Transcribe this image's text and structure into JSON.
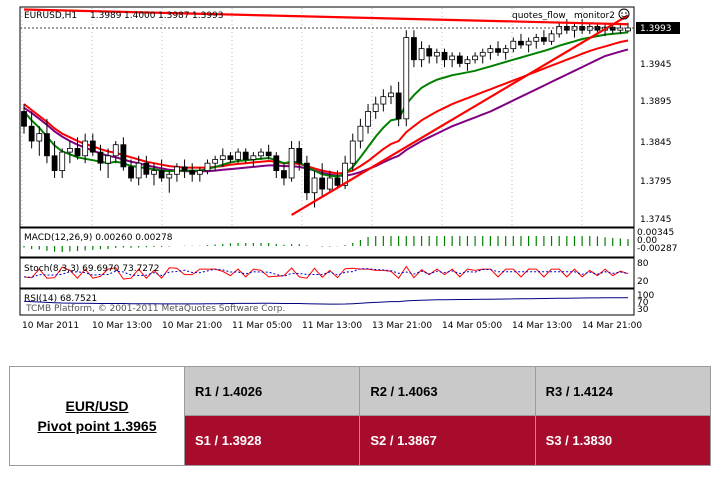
{
  "chart_data": {
    "type": "candlestick",
    "symbol_header": "EURUSD,H1",
    "ohlc_header": [
      "1.3989",
      "1.4000",
      "1.3987",
      "1.3993"
    ],
    "indicators_header": [
      "quotes_flow",
      "monitor2"
    ],
    "current_price": "1.3993",
    "y_ticks": [
      "1.3945",
      "1.3895",
      "1.3845",
      "1.3795",
      "1.3745"
    ],
    "ylim": [
      1.3725,
      1.402
    ],
    "x_ticks": [
      "10 Mar 2011",
      "10 Mar 13:00",
      "10 Mar 21:00",
      "11 Mar 05:00",
      "11 Mar 13:00",
      "13 Mar 21:00",
      "14 Mar 05:00",
      "14 Mar 13:00",
      "14 Mar 21:00"
    ],
    "candles": [
      [
        1.388,
        1.389,
        1.385,
        1.386
      ],
      [
        1.386,
        1.388,
        1.383,
        1.384
      ],
      [
        1.384,
        1.386,
        1.382,
        1.385
      ],
      [
        1.385,
        1.387,
        1.381,
        1.382
      ],
      [
        1.382,
        1.384,
        1.379,
        1.38
      ],
      [
        1.38,
        1.383,
        1.379,
        1.3825
      ],
      [
        1.3825,
        1.384,
        1.381,
        1.383
      ],
      [
        1.383,
        1.3845,
        1.3815,
        1.382
      ],
      [
        1.382,
        1.385,
        1.381,
        1.384
      ],
      [
        1.384,
        1.385,
        1.382,
        1.3825
      ],
      [
        1.3825,
        1.3835,
        1.38,
        1.381
      ],
      [
        1.381,
        1.383,
        1.379,
        1.382
      ],
      [
        1.382,
        1.384,
        1.381,
        1.3835
      ],
      [
        1.3835,
        1.3845,
        1.38,
        1.3805
      ],
      [
        1.3805,
        1.3815,
        1.3785,
        1.379
      ],
      [
        1.379,
        1.382,
        1.378,
        1.381
      ],
      [
        1.381,
        1.382,
        1.379,
        1.3795
      ],
      [
        1.3795,
        1.381,
        1.378,
        1.38
      ],
      [
        1.38,
        1.3815,
        1.3785,
        1.379
      ],
      [
        1.379,
        1.38,
        1.377,
        1.3795
      ],
      [
        1.3795,
        1.381,
        1.3785,
        1.3805
      ],
      [
        1.3805,
        1.3815,
        1.379,
        1.38
      ],
      [
        1.38,
        1.381,
        1.3785,
        1.3795
      ],
      [
        1.3795,
        1.3805,
        1.3785,
        1.38
      ],
      [
        1.38,
        1.3815,
        1.3795,
        1.381
      ],
      [
        1.381,
        1.382,
        1.38,
        1.3815
      ],
      [
        1.3815,
        1.383,
        1.3805,
        1.382
      ],
      [
        1.382,
        1.3825,
        1.381,
        1.3815
      ],
      [
        1.3815,
        1.383,
        1.381,
        1.3825
      ],
      [
        1.3825,
        1.383,
        1.381,
        1.3815
      ],
      [
        1.3815,
        1.3825,
        1.3805,
        1.382
      ],
      [
        1.382,
        1.383,
        1.3815,
        1.3825
      ],
      [
        1.3825,
        1.3835,
        1.3815,
        1.382
      ],
      [
        1.382,
        1.3825,
        1.379,
        1.38
      ],
      [
        1.38,
        1.381,
        1.378,
        1.379
      ],
      [
        1.379,
        1.384,
        1.3785,
        1.383
      ],
      [
        1.383,
        1.384,
        1.38,
        1.381
      ],
      [
        1.381,
        1.382,
        1.376,
        1.377
      ],
      [
        1.377,
        1.38,
        1.375,
        1.379
      ],
      [
        1.379,
        1.381,
        1.3765,
        1.3775
      ],
      [
        1.3775,
        1.38,
        1.377,
        1.379
      ],
      [
        1.379,
        1.38,
        1.3775,
        1.378
      ],
      [
        1.378,
        1.382,
        1.3775,
        1.381
      ],
      [
        1.381,
        1.385,
        1.38,
        1.384
      ],
      [
        1.384,
        1.387,
        1.383,
        1.386
      ],
      [
        1.386,
        1.389,
        1.385,
        1.388
      ],
      [
        1.388,
        1.39,
        1.387,
        1.389
      ],
      [
        1.389,
        1.391,
        1.388,
        1.39
      ],
      [
        1.39,
        1.3915,
        1.389,
        1.3905
      ],
      [
        1.3905,
        1.392,
        1.386,
        1.387
      ],
      [
        1.387,
        1.399,
        1.386,
        1.398
      ],
      [
        1.398,
        1.399,
        1.394,
        1.395
      ],
      [
        1.395,
        1.3975,
        1.394,
        1.3965
      ],
      [
        1.3965,
        1.397,
        1.3945,
        1.3955
      ],
      [
        1.3955,
        1.3965,
        1.3945,
        1.396
      ],
      [
        1.396,
        1.3965,
        1.394,
        1.395
      ],
      [
        1.395,
        1.396,
        1.394,
        1.3955
      ],
      [
        1.3955,
        1.396,
        1.394,
        1.3945
      ],
      [
        1.3945,
        1.3955,
        1.3935,
        1.395
      ],
      [
        1.395,
        1.396,
        1.3945,
        1.3955
      ],
      [
        1.3955,
        1.3965,
        1.3945,
        1.396
      ],
      [
        1.396,
        1.397,
        1.395,
        1.3965
      ],
      [
        1.3965,
        1.3975,
        1.3955,
        1.396
      ],
      [
        1.396,
        1.397,
        1.395,
        1.3965
      ],
      [
        1.3965,
        1.398,
        1.396,
        1.3975
      ],
      [
        1.3975,
        1.3985,
        1.3965,
        1.397
      ],
      [
        1.397,
        1.398,
        1.396,
        1.3975
      ],
      [
        1.3975,
        1.3985,
        1.3965,
        1.398
      ],
      [
        1.398,
        1.399,
        1.397,
        1.3975
      ],
      [
        1.3975,
        1.399,
        1.397,
        1.3985
      ],
      [
        1.3985,
        1.4,
        1.398,
        1.3995
      ],
      [
        1.3995,
        1.4005,
        1.3985,
        1.399
      ],
      [
        1.399,
        1.4,
        1.398,
        1.3995
      ],
      [
        1.3995,
        1.4005,
        1.3985,
        1.399
      ],
      [
        1.399,
        1.4,
        1.3985,
        1.3995
      ],
      [
        1.3995,
        1.4,
        1.3985,
        1.399
      ],
      [
        1.399,
        1.3998,
        1.3982,
        1.3994
      ],
      [
        1.3994,
        1.4,
        1.3985,
        1.399
      ],
      [
        1.399,
        1.3998,
        1.3985,
        1.3993
      ],
      [
        1.3989,
        1.4,
        1.3987,
        1.3993
      ]
    ],
    "series": [
      {
        "values": [
          1.388,
          1.3868,
          1.3858,
          1.3846,
          1.3834,
          1.3826,
          1.3822,
          1.3818,
          1.3816,
          1.3814,
          1.3812,
          1.381,
          1.3812,
          1.381,
          1.3806,
          1.3805,
          1.3803,
          1.3802,
          1.38,
          1.3799,
          1.38,
          1.38,
          1.38,
          1.38,
          1.3802,
          1.3805,
          1.3808,
          1.3811,
          1.3813,
          1.3814,
          1.3815,
          1.3816,
          1.3817,
          1.3814,
          1.381,
          1.3812,
          1.3811,
          1.3805,
          1.38,
          1.3795,
          1.3793,
          1.3792,
          1.3796,
          1.3805,
          1.3818,
          1.3832,
          1.3846,
          1.3858,
          1.3868,
          1.387,
          1.389,
          1.3902,
          1.3912,
          1.3918,
          1.3923,
          1.3926,
          1.3929,
          1.3931,
          1.3933,
          1.3935,
          1.3938,
          1.3941,
          1.3944,
          1.3947,
          1.395,
          1.3953,
          1.3956,
          1.3959,
          1.3962,
          1.3965,
          1.3969,
          1.3972,
          1.3975,
          1.3978,
          1.398,
          1.3982,
          1.3984,
          1.3985,
          1.3986,
          1.3987
        ]
      },
      {
        "values": [
          1.389,
          1.3882,
          1.3874,
          1.3866,
          1.3857,
          1.385,
          1.3845,
          1.384,
          1.3836,
          1.3833,
          1.3829,
          1.3826,
          1.3824,
          1.3821,
          1.3818,
          1.3815,
          1.3812,
          1.381,
          1.3808,
          1.3806,
          1.3805,
          1.3804,
          1.3804,
          1.3804,
          1.3804,
          1.3805,
          1.3806,
          1.3808,
          1.3809,
          1.381,
          1.3811,
          1.3812,
          1.3813,
          1.3812,
          1.381,
          1.381,
          1.3809,
          1.3806,
          1.3803,
          1.38,
          1.3798,
          1.3796,
          1.3797,
          1.38,
          1.3806,
          1.3813,
          1.3821,
          1.3829,
          1.3836,
          1.384,
          1.3852,
          1.386,
          1.3868,
          1.3874,
          1.388,
          1.3885,
          1.389,
          1.3894,
          1.3898,
          1.3902,
          1.3906,
          1.391,
          1.3914,
          1.3918,
          1.3922,
          1.3926,
          1.393,
          1.3934,
          1.3938,
          1.3942,
          1.3946,
          1.395,
          1.3954,
          1.3958,
          1.3962,
          1.3965,
          1.3968,
          1.3971,
          1.3974,
          1.3976
        ]
      },
      {
        "values": [
          1.3885,
          1.3878,
          1.387,
          1.3862,
          1.3853,
          1.3846,
          1.384,
          1.3835,
          1.3831,
          1.3827,
          1.3823,
          1.382,
          1.3818,
          1.3815,
          1.3812,
          1.381,
          1.3807,
          1.3805,
          1.3803,
          1.3801,
          1.38,
          1.3799,
          1.3799,
          1.3799,
          1.3799,
          1.38,
          1.3801,
          1.3802,
          1.3803,
          1.3804,
          1.3805,
          1.3806,
          1.3807,
          1.3807,
          1.3806,
          1.3806,
          1.3805,
          1.3803,
          1.38,
          1.3797,
          1.3795,
          1.3793,
          1.3793,
          1.3795,
          1.3798,
          1.3802,
          1.3806,
          1.3811,
          1.3816,
          1.382,
          1.3828,
          1.3834,
          1.384,
          1.3845,
          1.385,
          1.3855,
          1.386,
          1.3864,
          1.3868,
          1.3872,
          1.3876,
          1.388,
          1.3885,
          1.389,
          1.3895,
          1.39,
          1.3905,
          1.391,
          1.3915,
          1.392,
          1.3925,
          1.393,
          1.3935,
          1.394,
          1.3945,
          1.395,
          1.3955,
          1.3958,
          1.3961,
          1.3964
        ]
      }
    ],
    "trendlines": [
      {
        "from_index": 35,
        "from": 1.374,
        "to_index": 79,
        "to": 1.401
      },
      {
        "from_index": 0,
        "from": 1.4018,
        "to_index": 79,
        "to": 1.3998
      }
    ],
    "macd": {
      "label": "MACD(12,26,9) 0.00260 0.00278",
      "ticks": [
        "0.00345",
        "0.00",
        "-0.00287"
      ]
    },
    "stoch": {
      "label": "Stoch(8,3,3) 69.6970 73.7272",
      "ticks": [
        "80",
        "20"
      ]
    },
    "rsi": {
      "label": "RSI(14) 68.7521",
      "ticks": [
        "100",
        "70",
        "30"
      ]
    },
    "watermark": "TCMB Platform, © 2001-2011 MetaQuotes Software Corp."
  },
  "pivot": {
    "pair": "EUR/USD",
    "pivot_label": "Pivot point 1.3965",
    "resistance": [
      "R1 / 1.4026",
      "R2 / 1.4063",
      "R3 / 1.4124"
    ],
    "support": [
      "S1 / 1.3928",
      "S2 / 1.3867",
      "S3 / 1.3830"
    ]
  },
  "colors": {
    "bull": "#ffffff",
    "bear": "#000000",
    "fast_ma": "#008000",
    "mid_ma": "#ff0000",
    "slow_ma": "#800080",
    "trendline": "#ff0000",
    "support_bg": "#a80c2c",
    "resistance_bg": "#c9c9c9"
  }
}
